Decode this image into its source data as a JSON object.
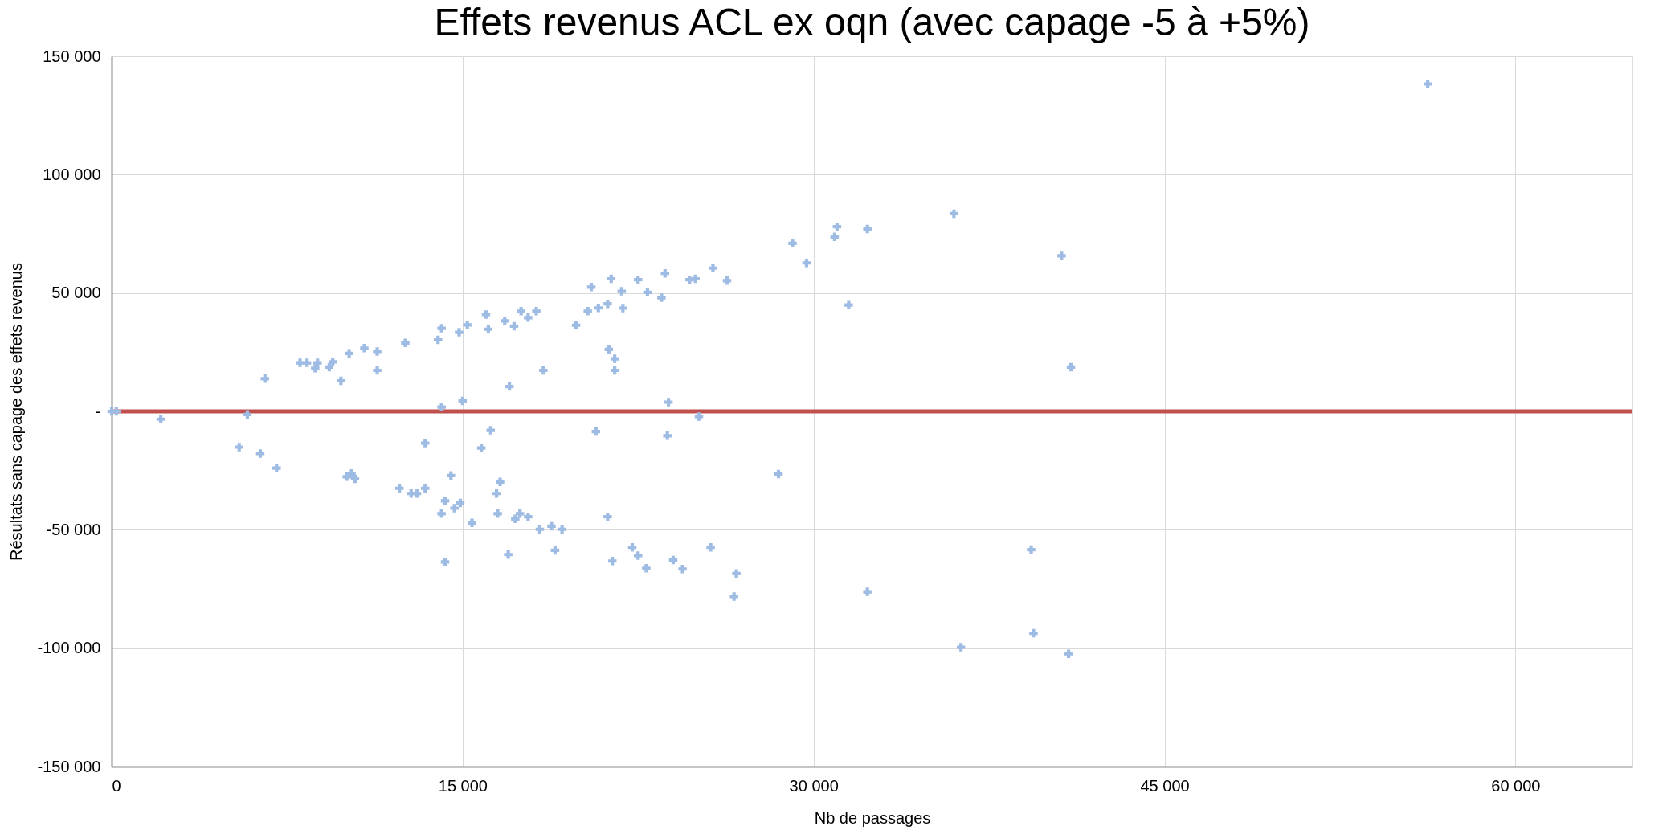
{
  "chart_data": {
    "type": "scatter",
    "title": "Effets revenus ACL ex oqn (avec capage -5 à +5%)",
    "xlabel": "Nb de passages",
    "ylabel": "Résultats sans capage des effets revenus",
    "xlim": [
      0,
      65000
    ],
    "ylim": [
      -150000,
      150000
    ],
    "xticks": [
      {
        "value": 0,
        "label": "0"
      },
      {
        "value": 15000,
        "label": "15 000"
      },
      {
        "value": 30000,
        "label": "30 000"
      },
      {
        "value": 45000,
        "label": "45 000"
      },
      {
        "value": 60000,
        "label": "60 000"
      }
    ],
    "yticks": [
      {
        "value": -150000,
        "label": "-150 000"
      },
      {
        "value": -100000,
        "label": "-100 000"
      },
      {
        "value": -50000,
        "label": "-50 000"
      },
      {
        "value": 0,
        "label": "-"
      },
      {
        "value": 50000,
        "label": "50 000"
      },
      {
        "value": 100000,
        "label": "100 000"
      },
      {
        "value": 150000,
        "label": "150 000"
      }
    ],
    "grid": true,
    "marker": "cross",
    "ref_lines": [
      {
        "axis": "y",
        "value": 0,
        "color": "#c0504d"
      }
    ],
    "series": [
      {
        "color": "#9dbbe3",
        "x": [
          0,
          200,
          2100,
          5800,
          6550,
          8050,
          8350,
          8700,
          8800,
          9300,
          9450,
          9800,
          10150,
          10800,
          11350,
          11350,
          12550,
          13950,
          14100,
          14100,
          15000,
          14850,
          15200,
          16000,
          16100,
          16800,
          17200,
          17500,
          17800,
          18150,
          17000,
          18450,
          19850,
          20350,
          20500,
          20800,
          21200,
          21350,
          21850,
          21800,
          22500,
          22900,
          23650,
          23500,
          21250,
          21500,
          21500,
          23800,
          24700,
          24950,
          25700,
          26300,
          29100,
          29700,
          31000,
          30900,
          32300,
          31500,
          36000,
          40600,
          41000,
          56250,
          25100,
          5450,
          6350,
          7050,
          10050,
          10250,
          10400,
          12300,
          12800,
          13050,
          13400,
          13400,
          14100,
          14250,
          14500,
          14650,
          14900,
          15400,
          14250,
          15800,
          16200,
          16600,
          16450,
          16500,
          17250,
          17450,
          17800,
          16950,
          18300,
          18800,
          19250,
          18950,
          21200,
          20700,
          23750,
          21400,
          22250,
          22500,
          22850,
          24000,
          24400,
          25600,
          26700,
          26600,
          28500,
          32300,
          39300,
          36300,
          39400,
          40900
        ],
        "values": [
          0,
          0,
          -3300,
          -1300,
          13800,
          20500,
          20500,
          18200,
          20500,
          18700,
          20900,
          12900,
          24500,
          26700,
          25300,
          17300,
          28900,
          30200,
          35100,
          1800,
          4400,
          33400,
          36500,
          40900,
          34700,
          38200,
          36000,
          42300,
          39600,
          42300,
          10500,
          17300,
          36400,
          42300,
          52500,
          43700,
          45400,
          56000,
          43600,
          50700,
          55600,
          50300,
          58300,
          48000,
          26200,
          22200,
          17300,
          3900,
          55600,
          56000,
          60500,
          55200,
          71000,
          62700,
          78000,
          73700,
          77000,
          44900,
          83500,
          65700,
          18700,
          138300,
          -2200,
          -15100,
          -17800,
          -24000,
          -27600,
          -26200,
          -28500,
          -32500,
          -34700,
          -34700,
          -32500,
          -13400,
          -43200,
          -37800,
          -27100,
          -40900,
          -38700,
          -47100,
          -63600,
          -15500,
          -8000,
          -29800,
          -34700,
          -43200,
          -45400,
          -43200,
          -44500,
          -60500,
          -49800,
          -48500,
          -49800,
          -58700,
          -44500,
          -8500,
          -10300,
          -63200,
          -57400,
          -60900,
          -66300,
          -62800,
          -66600,
          -57400,
          -68500,
          -78200,
          -26500,
          -76200,
          -58400,
          -99600,
          -93700,
          -102400
        ]
      }
    ]
  }
}
